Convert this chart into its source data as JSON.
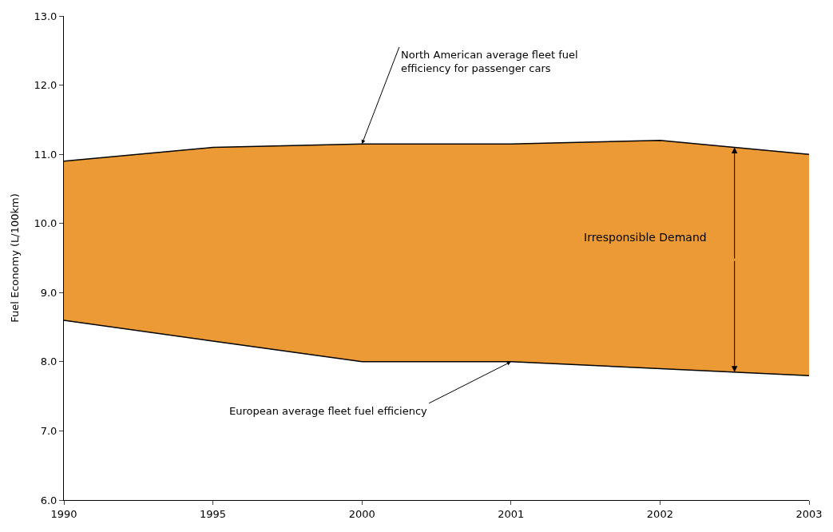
{
  "chart_data": {
    "type": "area",
    "ylabel": "Fuel Economy (L/100km)",
    "categories": [
      "1990",
      "1995",
      "2000",
      "2001",
      "2002",
      "2003"
    ],
    "series": [
      {
        "type": "line",
        "color": "#000000",
        "values": [
          8.6,
          8.3,
          8.0,
          8.0,
          7.9,
          7.8
        ]
      },
      {
        "color": "#ec9a35",
        "values": [
          10.9,
          11.1,
          11.15,
          11.15,
          11.2,
          11.0
        ]
      }
    ],
    "ylim": [
      6,
      13
    ],
    "yticks": [
      {
        "value": 6,
        "label": "6.0"
      },
      {
        "value": 7,
        "label": "7.0"
      },
      {
        "value": 8,
        "label": "8.0"
      },
      {
        "value": 9,
        "label": "9.0"
      },
      {
        "value": 10,
        "label": "10.0"
      },
      {
        "value": 11,
        "label": "11.0"
      },
      {
        "value": 12,
        "label": "12.0"
      },
      {
        "value": 13,
        "label": "13.0"
      }
    ],
    "annotations": [
      {
        "text": "North American average fleet fuel efficiency for passenger cars",
        "x": "2000",
        "y": 11.15
      },
      {
        "text": "European average fleet fuel efficiency",
        "x": "2001",
        "y": 8.0
      },
      "Irresponsible Demand"
    ]
  }
}
